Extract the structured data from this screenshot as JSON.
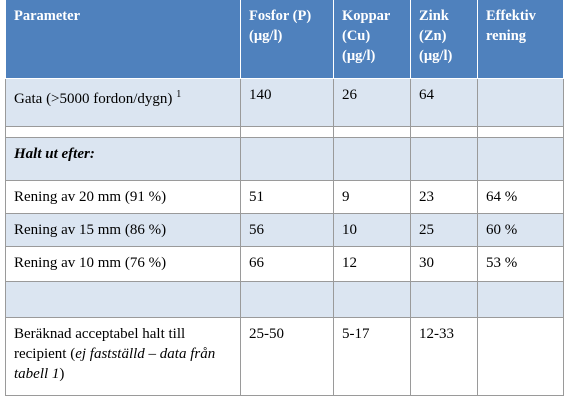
{
  "table": {
    "header": [
      [
        "Parameter"
      ],
      [
        "Fosfor (P)",
        "(µg/l)"
      ],
      [
        "Koppar",
        "(Cu)",
        "(µg/l)"
      ],
      [
        "Zink",
        "(Zn)",
        "(µg/l)"
      ],
      [
        "Effektiv",
        "rening"
      ]
    ],
    "rows": {
      "gata": {
        "label": "Gata (>5000 fordon/dygn)",
        "note": "1",
        "p": 140,
        "cu": 26,
        "zn": 64
      },
      "halt": {
        "label": "Halt ut efter:"
      },
      "r20": {
        "label": "Rening av 20 mm (91 %)",
        "p": 51,
        "cu": 9,
        "zn": 23,
        "eff": "64 %"
      },
      "r15": {
        "label": "Rening av 15 mm (86 %)",
        "p": 56,
        "cu": 10,
        "zn": 25,
        "eff": "60 %"
      },
      "r10": {
        "label": "Rening av 10 mm (76 %)",
        "p": 66,
        "cu": 12,
        "zn": 30,
        "eff": "53 %"
      },
      "ber": {
        "label": "Beräknad acceptabel halt till recipient (",
        "label_italic": "ej fastställd – data från tabell 1",
        "label_end": ")",
        "p": "25-50",
        "cu": "5-17",
        "zn": "12-33"
      }
    }
  }
}
